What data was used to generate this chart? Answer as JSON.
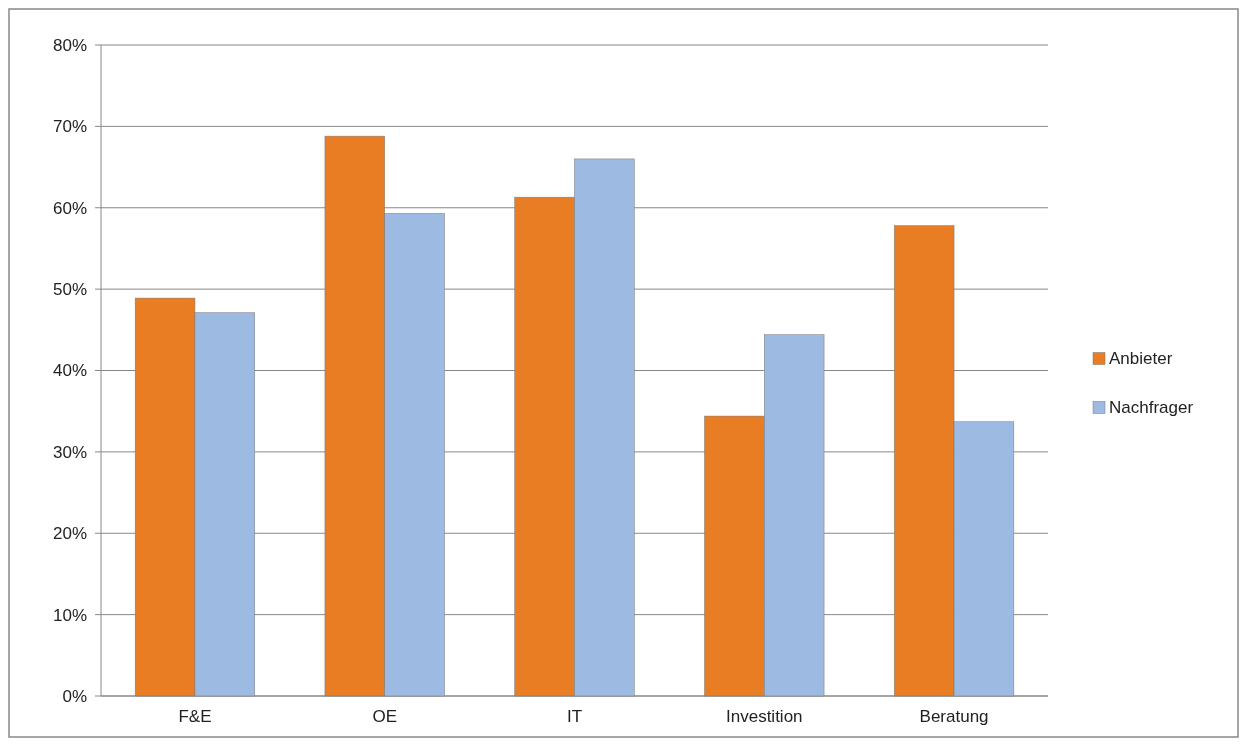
{
  "chart_data": {
    "type": "bar",
    "categories": [
      "F&E",
      "OE",
      "IT",
      "Investition",
      "Beratung"
    ],
    "series": [
      {
        "name": "Anbieter",
        "color": "#e87d24",
        "values": [
          48.9,
          68.8,
          61.3,
          34.4,
          57.8
        ]
      },
      {
        "name": "Nachfrager",
        "color": "#9dbbe2",
        "values": [
          47.1,
          59.3,
          66.0,
          44.4,
          33.7
        ]
      }
    ],
    "ylim": [
      0,
      80
    ],
    "yticks": [
      {
        "value": 0,
        "label": "0%"
      },
      {
        "value": 10,
        "label": "10%"
      },
      {
        "value": 20,
        "label": "20%"
      },
      {
        "value": 30,
        "label": "30%"
      },
      {
        "value": 40,
        "label": "40%"
      },
      {
        "value": 50,
        "label": "50%"
      },
      {
        "value": 60,
        "label": "60%"
      },
      {
        "value": 70,
        "label": "70%"
      },
      {
        "value": 80,
        "label": "80%"
      }
    ],
    "grid": "y",
    "legend": "right"
  }
}
